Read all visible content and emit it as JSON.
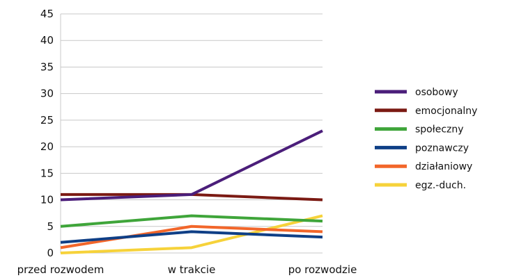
{
  "chart_data": {
    "type": "line",
    "categories": [
      "przed rozwodem",
      "w trakcie",
      "po rozwodzie"
    ],
    "series": [
      {
        "name": "osobowy",
        "color": "#4b1e7a",
        "values": [
          10,
          11,
          23
        ]
      },
      {
        "name": "emocjonalny",
        "color": "#7b1a13",
        "values": [
          11,
          11,
          10
        ]
      },
      {
        "name": "społeczny",
        "color": "#3fa53a",
        "values": [
          5,
          7,
          6
        ]
      },
      {
        "name": "poznawczy",
        "color": "#0f3f86",
        "values": [
          2,
          4,
          3
        ]
      },
      {
        "name": "działaniowy",
        "color": "#f2662a",
        "values": [
          1,
          5,
          4
        ]
      },
      {
        "name": "egz.-duch.",
        "color": "#f6d23a",
        "values": [
          0,
          1,
          7
        ]
      }
    ],
    "y_ticks": [
      0,
      5,
      10,
      15,
      20,
      25,
      30,
      35,
      40,
      45
    ],
    "ylim": [
      0,
      45
    ],
    "grid": true,
    "legend_position": "right"
  }
}
